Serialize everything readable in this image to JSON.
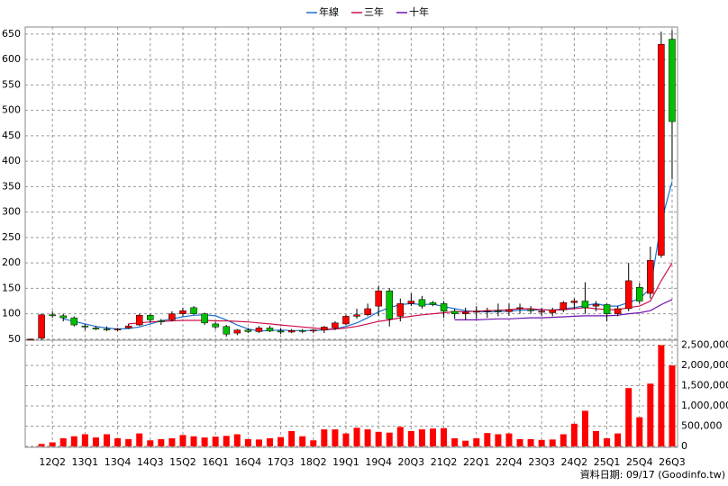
{
  "chart_data": {
    "type": "candlestick",
    "categories": [
      null,
      null,
      "12Q2",
      null,
      null,
      "13Q1",
      null,
      null,
      "13Q4",
      null,
      null,
      "14Q3",
      null,
      null,
      "15Q2",
      null,
      null,
      "16Q1",
      null,
      null,
      "16Q4",
      null,
      null,
      "17Q3",
      null,
      null,
      "18Q2",
      null,
      null,
      "19Q1",
      null,
      null,
      "19Q4",
      null,
      null,
      "20Q3",
      null,
      null,
      "21Q2",
      null,
      null,
      "22Q1",
      null,
      null,
      "22Q4",
      null,
      null,
      "23Q3",
      null,
      null,
      "24Q2",
      null,
      null,
      "25Q1",
      null,
      null,
      "25Q4",
      null,
      null,
      "26Q3"
    ],
    "open": [
      50,
      52,
      98,
      96,
      92,
      76,
      72,
      70,
      69,
      72,
      78,
      97,
      86,
      88,
      100,
      112,
      100,
      80,
      75,
      62,
      68,
      65,
      72,
      66,
      64,
      67,
      66,
      68,
      72,
      80,
      95,
      98,
      115,
      145,
      95,
      120,
      128,
      122,
      120,
      105,
      100,
      103,
      104,
      106,
      104,
      110,
      108,
      103,
      102,
      108,
      122,
      125,
      115,
      118,
      100,
      110,
      152,
      140,
      215,
      640
    ],
    "high": [
      51,
      100,
      105,
      100,
      95,
      80,
      76,
      75,
      72,
      80,
      100,
      100,
      90,
      105,
      112,
      115,
      102,
      84,
      78,
      70,
      72,
      76,
      76,
      72,
      70,
      70,
      70,
      76,
      85,
      98,
      110,
      120,
      155,
      150,
      130,
      140,
      135,
      125,
      125,
      110,
      112,
      115,
      112,
      120,
      120,
      120,
      115,
      112,
      112,
      125,
      130,
      162,
      125,
      120,
      115,
      200,
      160,
      232,
      655,
      658
    ],
    "low": [
      49,
      48,
      92,
      85,
      75,
      68,
      68,
      66,
      66,
      70,
      76,
      82,
      78,
      85,
      95,
      98,
      78,
      70,
      55,
      58,
      62,
      62,
      64,
      60,
      62,
      62,
      62,
      62,
      68,
      78,
      90,
      95,
      95,
      75,
      85,
      115,
      110,
      115,
      92,
      90,
      88,
      90,
      92,
      95,
      96,
      100,
      100,
      95,
      95,
      103,
      110,
      100,
      105,
      85,
      95,
      105,
      120,
      130,
      210,
      365
    ],
    "close": [
      50,
      98,
      96,
      92,
      78,
      74,
      70,
      69,
      70,
      76,
      97,
      88,
      84,
      100,
      106,
      100,
      82,
      74,
      60,
      68,
      65,
      72,
      66,
      64,
      67,
      66,
      68,
      74,
      82,
      95,
      98,
      110,
      145,
      90,
      120,
      125,
      115,
      118,
      105,
      100,
      103,
      105,
      106,
      105,
      108,
      112,
      106,
      105,
      108,
      122,
      125,
      112,
      118,
      100,
      110,
      165,
      125,
      205,
      630,
      478
    ],
    "volume": [
      0,
      60000,
      100000,
      200000,
      250000,
      300000,
      220000,
      300000,
      200000,
      180000,
      320000,
      150000,
      180000,
      200000,
      280000,
      250000,
      220000,
      240000,
      260000,
      300000,
      180000,
      170000,
      200000,
      230000,
      380000,
      250000,
      150000,
      420000,
      420000,
      320000,
      460000,
      420000,
      360000,
      340000,
      480000,
      380000,
      420000,
      440000,
      450000,
      200000,
      140000,
      200000,
      330000,
      300000,
      320000,
      180000,
      180000,
      160000,
      170000,
      300000,
      560000,
      880000,
      380000,
      200000,
      320000,
      1440000,
      720000,
      1550000,
      2500000,
      2000000
    ],
    "up_color": "#ff0000",
    "down_color": "#00c000",
    "volume_color": "#ff0000",
    "series": [
      {
        "name": "年線",
        "color": "#1e6fd0",
        "values": [
          null,
          null,
          null,
          90,
          85,
          80,
          75,
          72,
          70,
          71,
          74,
          80,
          86,
          90,
          94,
          97,
          98,
          96,
          88,
          78,
          70,
          66,
          67,
          68,
          67,
          67,
          67,
          68,
          70,
          75,
          82,
          92,
          104,
          112,
          118,
          120,
          118,
          119,
          114,
          110,
          106,
          104,
          104,
          104,
          105,
          107,
          107,
          108,
          107,
          110,
          112,
          116,
          120,
          115,
          115,
          122,
          130,
          150,
          280,
          360
        ]
      },
      {
        "name": "三年",
        "color": "#d0104a",
        "values": [
          null,
          null,
          null,
          null,
          null,
          null,
          null,
          null,
          null,
          80,
          82,
          84,
          85,
          86,
          87,
          87,
          87,
          86,
          86,
          85,
          84,
          82,
          80,
          78,
          76,
          74,
          72,
          70,
          70,
          72,
          75,
          80,
          85,
          88,
          92,
          95,
          98,
          100,
          102,
          104,
          104,
          105,
          106,
          107,
          108,
          110,
          110,
          108,
          107,
          108,
          110,
          112,
          110,
          108,
          108,
          112,
          115,
          125,
          165,
          200
        ]
      },
      {
        "name": "十年",
        "color": "#7010b0",
        "values": [
          null,
          null,
          null,
          null,
          null,
          null,
          null,
          null,
          null,
          null,
          null,
          null,
          null,
          null,
          null,
          null,
          null,
          null,
          null,
          null,
          null,
          null,
          null,
          null,
          null,
          null,
          null,
          null,
          null,
          null,
          null,
          null,
          null,
          null,
          null,
          null,
          null,
          null,
          null,
          88,
          88,
          88,
          89,
          90,
          90,
          91,
          92,
          92,
          93,
          94,
          95,
          96,
          96,
          96,
          97,
          100,
          102,
          106,
          118,
          128
        ]
      }
    ],
    "ylim": [
      48,
      664
    ],
    "yticks": [
      50,
      100,
      150,
      200,
      250,
      300,
      350,
      400,
      450,
      500,
      550,
      600,
      650
    ],
    "y2lim": [
      0,
      2600000
    ],
    "y2ticks": [
      0,
      {
        "value": 500000,
        "label": "500,000"
      },
      {
        "value": 1000000,
        "label": "1,000,000"
      },
      {
        "value": 1500000,
        "label": "1,500,000"
      },
      {
        "value": 2000000,
        "label": "2,000,000"
      },
      {
        "value": 2500000,
        "label": "2,500,000"
      }
    ],
    "grid": true,
    "note": "資料日期: 09/17   (Goodinfo.tw)"
  }
}
